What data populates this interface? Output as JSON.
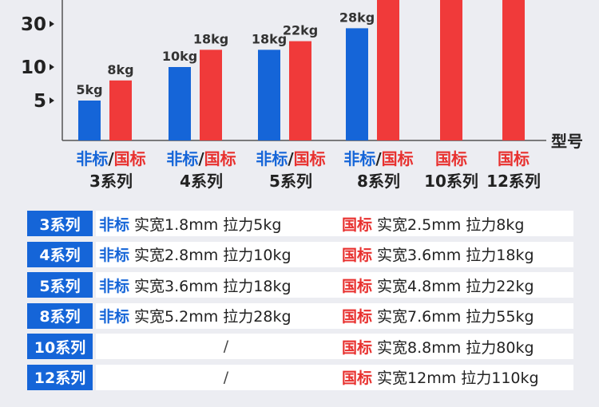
{
  "chart_data": {
    "type": "bar",
    "x_label": "型号",
    "y_ticks": [
      {
        "label": "30",
        "value": 30
      },
      {
        "label": "10",
        "value": 10
      },
      {
        "label": "5",
        "value": 5
      }
    ],
    "colors": {
      "non_standard": "#1565d8",
      "national": "#f03a3a"
    },
    "groups": [
      {
        "series_tag": "非标",
        "slash": "/",
        "national_tag": "国标",
        "name": "3系列",
        "non_standard": {
          "value": 5,
          "label": "5kg"
        },
        "national": {
          "value": 8,
          "label": "8kg"
        }
      },
      {
        "series_tag": "非标",
        "slash": "/",
        "national_tag": "国标",
        "name": "4系列",
        "non_standard": {
          "value": 10,
          "label": "10kg"
        },
        "national": {
          "value": 18,
          "label": "18kg"
        }
      },
      {
        "series_tag": "非标",
        "slash": "/",
        "national_tag": "国标",
        "name": "5系列",
        "non_standard": {
          "value": 18,
          "label": "18kg"
        },
        "national": {
          "value": 22,
          "label": "22kg"
        }
      },
      {
        "series_tag": "非标",
        "slash": "/",
        "national_tag": "国标",
        "name": "8系列",
        "non_standard": {
          "value": 28,
          "label": "28kg"
        },
        "national": {
          "value": 55,
          "label": ""
        }
      },
      {
        "series_tag": "",
        "slash": "",
        "national_tag": "国标",
        "name": "10系列",
        "non_standard": null,
        "national": {
          "value": 80,
          "label": ""
        }
      },
      {
        "series_tag": "",
        "slash": "",
        "national_tag": "国标",
        "name": "12系列",
        "non_standard": null,
        "national": {
          "value": 110,
          "label": ""
        }
      }
    ]
  },
  "table": {
    "rows": [
      {
        "series": "3系列",
        "left_tag": "非标",
        "left_text": "实宽1.8mm 拉力5kg",
        "right_tag": "国标",
        "right_text": "实宽2.5mm 拉力8kg"
      },
      {
        "series": "4系列",
        "left_tag": "非标",
        "left_text": "实宽2.8mm 拉力10kg",
        "right_tag": "国标",
        "right_text": "实宽3.6mm 拉力18kg"
      },
      {
        "series": "5系列",
        "left_tag": "非标",
        "left_text": "实宽3.6mm 拉力18kg",
        "right_tag": "国标",
        "right_text": "实宽4.8mm 拉力22kg"
      },
      {
        "series": "8系列",
        "left_tag": "非标",
        "left_text": "实宽5.2mm 拉力28kg",
        "right_tag": "国标",
        "right_text": "实宽7.6mm 拉力55kg"
      },
      {
        "series": "10系列",
        "left_tag": "",
        "left_text": "/",
        "right_tag": "国标",
        "right_text": "实宽8.8mm 拉力80kg"
      },
      {
        "series": "12系列",
        "left_tag": "",
        "left_text": "/",
        "right_tag": "国标",
        "right_text": "实宽12mm 拉力110kg"
      }
    ]
  }
}
